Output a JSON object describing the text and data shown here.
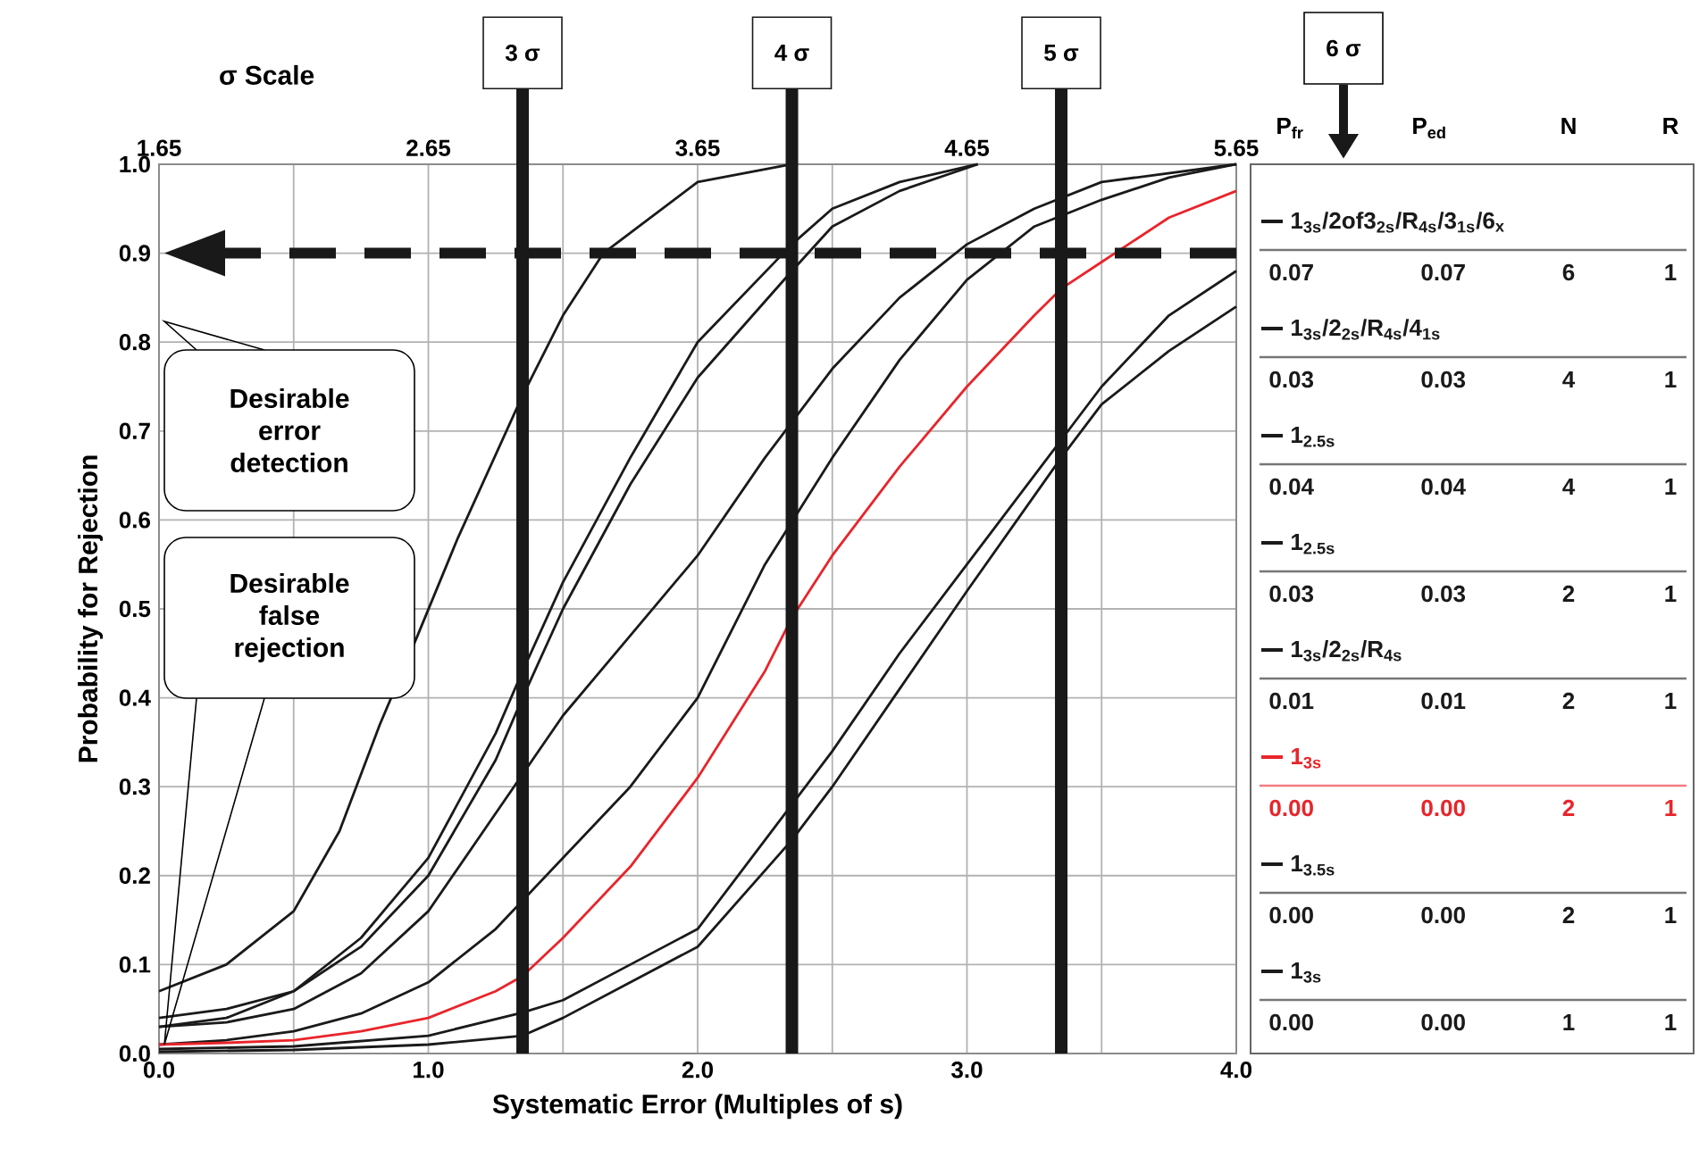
{
  "chart_data": {
    "type": "line",
    "xlabel": "Systematic Error (Multiples of s)",
    "ylabel": "Probability for Rejection",
    "x2label": "σ Scale",
    "xlim": [
      0,
      4
    ],
    "ylim": [
      0,
      1
    ],
    "xticks": [
      {
        "value": 0,
        "label": "0.0"
      },
      {
        "value": 0.5,
        "label": null
      },
      {
        "value": 1,
        "label": "1.0"
      },
      {
        "value": 1.5,
        "label": null
      },
      {
        "value": 2,
        "label": "2.0"
      },
      {
        "value": 2.5,
        "label": null
      },
      {
        "value": 3,
        "label": "3.0"
      },
      {
        "value": 3.5,
        "label": null
      },
      {
        "value": 4,
        "label": "4.0"
      }
    ],
    "yticks": [
      {
        "value": 0,
        "label": "0.0"
      },
      0.1,
      0.2,
      0.3,
      0.4,
      0.5,
      0.6,
      0.7,
      0.8,
      0.9,
      {
        "value": 1,
        "label": "1.0"
      }
    ],
    "x2lim": [
      1.65,
      5.65
    ],
    "x2ticks": [
      1.65,
      2.65,
      3.65,
      4.65,
      5.65
    ],
    "grid": true,
    "legend": "right",
    "series": [
      {
        "name": "1$_{3s}$/2of3$_{2s}$/R$_{4s}$/3$_{1s}$/6$_{x}$",
        "color": "#1a1a1a",
        "x": [
          0,
          0.25,
          0.5,
          0.67,
          0.82,
          0.96,
          1.11,
          1.35,
          1.5,
          1.65,
          2.0,
          2.35
        ],
        "values": [
          0.07,
          0.1,
          0.16,
          0.25,
          0.37,
          0.47,
          0.58,
          0.74,
          0.83,
          0.9,
          0.98,
          1.0
        ]
      },
      {
        "name": "1$_{3s}$/2$_{2s}$/R$_{4s}$/4$_{1s}$",
        "color": "#1a1a1a",
        "x": [
          0,
          0.25,
          0.5,
          0.75,
          1.0,
          1.25,
          1.35,
          1.5,
          1.75,
          2.0,
          2.35,
          2.5,
          2.75,
          3.04
        ],
        "values": [
          0.03,
          0.04,
          0.07,
          0.13,
          0.22,
          0.36,
          0.43,
          0.53,
          0.67,
          0.8,
          0.91,
          0.95,
          0.98,
          1.0
        ]
      },
      {
        "name": "1$_{2.5s}$",
        "color": "#1a1a1a",
        "x": [
          0,
          0.25,
          0.5,
          0.75,
          1.0,
          1.25,
          1.35,
          1.5,
          1.75,
          2.0,
          2.35,
          2.5,
          2.75,
          3.04
        ],
        "values": [
          0.04,
          0.05,
          0.07,
          0.12,
          0.2,
          0.33,
          0.4,
          0.5,
          0.64,
          0.76,
          0.88,
          0.93,
          0.97,
          1.0
        ]
      },
      {
        "name": "1$_{2.5s}$",
        "color": "#1a1a1a",
        "x": [
          0,
          0.25,
          0.5,
          0.75,
          1.0,
          1.25,
          1.5,
          1.75,
          2.0,
          2.25,
          2.5,
          2.75,
          3.0,
          3.25,
          3.5,
          3.75,
          4.0
        ],
        "values": [
          0.03,
          0.035,
          0.05,
          0.09,
          0.16,
          0.27,
          0.38,
          0.47,
          0.56,
          0.67,
          0.77,
          0.85,
          0.91,
          0.95,
          0.98,
          0.99,
          1.0
        ]
      },
      {
        "name": "1$_{3s}$/2$_{2s}$/R$_{4s}$",
        "color": "#1a1a1a",
        "x": [
          0,
          0.25,
          0.5,
          0.75,
          1.0,
          1.25,
          1.5,
          1.75,
          2.0,
          2.25,
          2.5,
          2.75,
          3.0,
          3.25,
          3.5,
          3.75,
          4.0
        ],
        "values": [
          0.01,
          0.015,
          0.025,
          0.045,
          0.08,
          0.14,
          0.22,
          0.3,
          0.4,
          0.55,
          0.67,
          0.78,
          0.87,
          0.93,
          0.96,
          0.985,
          1.0
        ]
      },
      {
        "name": "1$_{3s}$",
        "color": "#e8252b",
        "x": [
          0,
          0.25,
          0.5,
          0.75,
          1.0,
          1.25,
          1.35,
          1.5,
          1.75,
          2.0,
          2.25,
          2.35,
          2.5,
          2.75,
          3.0,
          3.25,
          3.35,
          3.5,
          3.75,
          4.0
        ],
        "values": [
          0.01,
          0.012,
          0.015,
          0.025,
          0.04,
          0.07,
          0.087,
          0.13,
          0.21,
          0.31,
          0.43,
          0.49,
          0.56,
          0.66,
          0.75,
          0.83,
          0.86,
          0.89,
          0.94,
          0.97
        ]
      },
      {
        "name": "1$_{3.5s}$",
        "color": "#1a1a1a",
        "x": [
          0,
          0.5,
          1.0,
          1.35,
          1.5,
          1.75,
          2.0,
          2.35,
          2.5,
          2.75,
          3.0,
          3.35,
          3.5,
          3.75,
          4.0
        ],
        "values": [
          0.002,
          0.004,
          0.01,
          0.02,
          0.04,
          0.08,
          0.12,
          0.24,
          0.3,
          0.41,
          0.52,
          0.67,
          0.73,
          0.79,
          0.84
        ]
      },
      {
        "name": "1$_{3s}$",
        "color": "#1a1a1a",
        "x": [
          0,
          0.5,
          1.0,
          1.35,
          1.5,
          1.75,
          2.0,
          2.35,
          2.5,
          2.75,
          3.0,
          3.35,
          3.5,
          3.75,
          4.0
        ],
        "values": [
          0.005,
          0.008,
          0.02,
          0.046,
          0.06,
          0.1,
          0.14,
          0.28,
          0.34,
          0.45,
          0.55,
          0.69,
          0.75,
          0.83,
          0.88
        ]
      }
    ],
    "ref_lines": [
      {
        "axis": "x2",
        "value": 3,
        "label": "3 σ"
      },
      {
        "axis": "x2",
        "value": 4,
        "label": "4 σ"
      },
      {
        "axis": "x2",
        "value": 5,
        "label": "5 σ"
      },
      {
        "axis": "y",
        "value": 0.9,
        "line_style": "dashed"
      }
    ],
    "annotations": [
      "Desirable error detection",
      "Desirable false rejection",
      "6 σ",
      "P$_{fr}$",
      "P$_{ed}$",
      "N",
      "R",
      "0.07",
      "0.07",
      "6",
      "1",
      "0.03",
      "0.03",
      "4",
      "1",
      "0.04",
      "0.04",
      "4",
      "1",
      "0.03",
      "0.03",
      "2",
      "1",
      "0.01",
      "0.01",
      "2",
      "1",
      "0.00",
      "0.00",
      "2",
      "1",
      "0.00",
      "0.00",
      "2",
      "1",
      "0.00",
      "0.00",
      "1",
      "1"
    ]
  }
}
